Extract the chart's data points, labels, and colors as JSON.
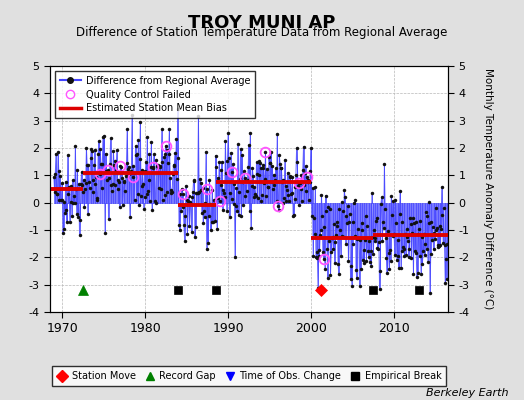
{
  "title": "TROY MUNI AP",
  "subtitle": "Difference of Station Temperature Data from Regional Average",
  "ylabel": "Monthly Temperature Anomaly Difference (°C)",
  "xlabel_credit": "Berkeley Earth",
  "xlim": [
    1968.5,
    2016.5
  ],
  "ylim": [
    -4,
    5
  ],
  "yticks": [
    -4,
    -3,
    -2,
    -1,
    0,
    1,
    2,
    3,
    4,
    5
  ],
  "xticks": [
    1970,
    1980,
    1990,
    2000,
    2010
  ],
  "background_color": "#e0e0e0",
  "plot_background": "#ffffff",
  "line_color": "#4444ff",
  "bias_color": "#dd0000",
  "qc_color": "#ff55ff",
  "marker_color": "#111111",
  "seed": 42,
  "segments": [
    {
      "start": 1968.5,
      "end": 1972.5,
      "bias": 0.5
    },
    {
      "start": 1972.5,
      "end": 1984.0,
      "bias": 1.1
    },
    {
      "start": 1984.0,
      "end": 1988.5,
      "bias": -0.1
    },
    {
      "start": 1988.5,
      "end": 2000.0,
      "bias": 0.75
    },
    {
      "start": 2000.0,
      "end": 2007.5,
      "bias": -1.3
    },
    {
      "start": 2007.5,
      "end": 2016.5,
      "bias": -1.2
    }
  ],
  "station_moves": [
    2001.25
  ],
  "record_gaps": [
    1972.5
  ],
  "time_obs_changes": [],
  "empirical_breaks": [
    1984.0,
    1988.5,
    2007.5,
    2013.0
  ],
  "qc_failed_approx": [
    1974.5,
    1975.5,
    1977.0,
    1978.5,
    1981.0,
    1982.5,
    1984.5,
    1987.5,
    1989.0,
    1990.5,
    1992.0,
    1994.5,
    1996.0,
    1998.5,
    1999.5,
    2001.5
  ],
  "marker_size": 2.5,
  "stem_lw": 0.6,
  "line_lw": 0.7,
  "bias_lw": 2.8,
  "bottom_marker_y": -3.2
}
